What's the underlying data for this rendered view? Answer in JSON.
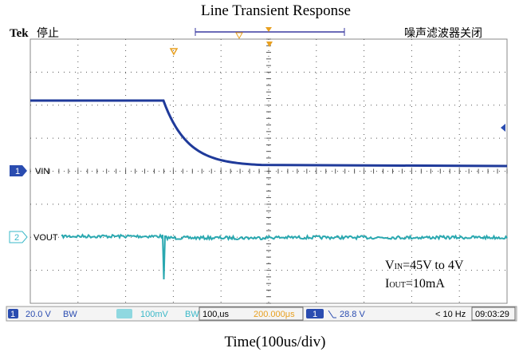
{
  "title": "Line Transient Response",
  "header": {
    "brand": "Tek",
    "status": "停止",
    "filter": "噪声滤波器关闭"
  },
  "channels": [
    {
      "number": "1",
      "label": "VIN"
    },
    {
      "number": "2",
      "label": "VOUT"
    }
  ],
  "annotations": [
    {
      "symbol": "V",
      "subscript": "IN",
      "text": "=45V to 4V"
    },
    {
      "symbol": "I",
      "subscript": "OUT",
      "text": "=10mA"
    }
  ],
  "status_bar": {
    "ch1_number": "1",
    "ch1_scale": "20.0 V",
    "ch1_bw": "BW",
    "ch2_scale": "100mV",
    "ch2_bw": "BW",
    "timebase": "100,us",
    "position": "200.000μs",
    "trigger_channel": "1",
    "trigger_level": "28.8 V",
    "frequency": "< 10 Hz",
    "time": "09:03:29"
  },
  "caption": "Time(100us/div)"
}
